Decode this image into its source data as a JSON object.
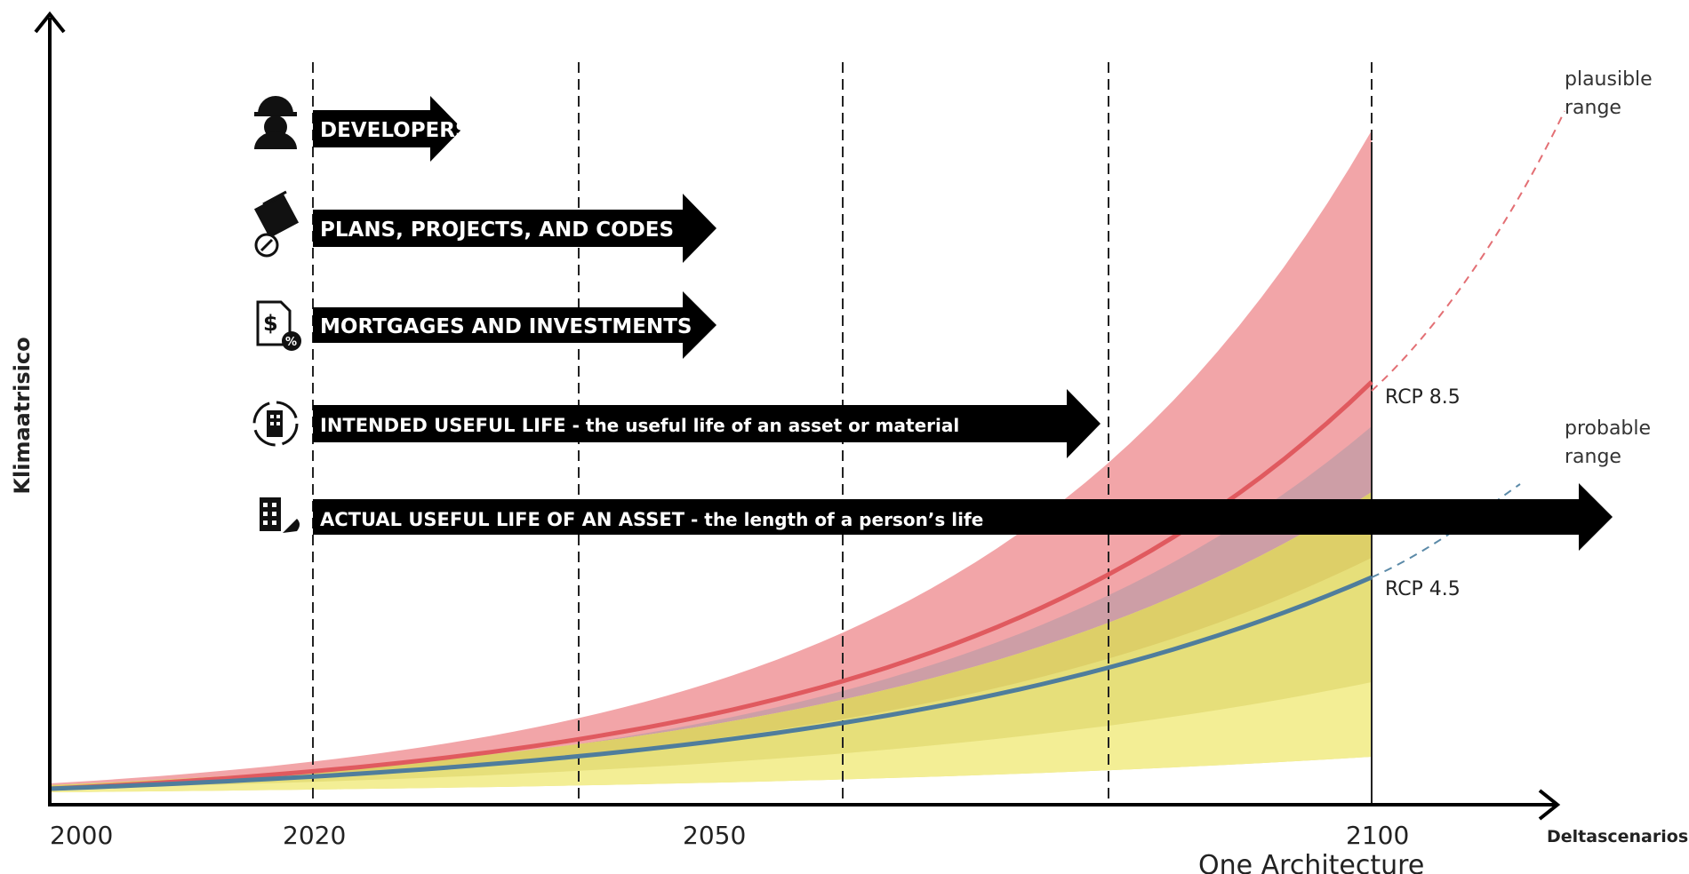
{
  "axes": {
    "y_label": "Klimaatrisico",
    "x_label": "Deltascenarios",
    "x_ticks": [
      "2000",
      "2020",
      "2050",
      "2100"
    ]
  },
  "arrows": [
    {
      "title": "DEVELOPERS",
      "subtitle": "",
      "icon": "worker-helmet-icon",
      "end_year": 2031
    },
    {
      "title": "PLANS, PROJECTS, AND CODES",
      "subtitle": "",
      "icon": "blueprints-icon",
      "end_year": 2050
    },
    {
      "title": "MORTGAGES AND INVESTMENTS",
      "subtitle": "",
      "icon": "mortgage-document-icon",
      "end_year": 2050
    },
    {
      "title": "INTENDED USEFUL LIFE",
      "subtitle": " - the useful life of an asset or material",
      "icon": "building-cycle-icon",
      "end_year": 2079
    },
    {
      "title": "ACTUAL USEFUL LIFE OF AN ASSET",
      "subtitle": " - the length of a person’s life",
      "icon": "building-plant-icon",
      "end_year": 2118
    }
  ],
  "scenarios": {
    "rcp85": {
      "label": "RCP 8.5",
      "color": "#e05a5f",
      "band_color": "#f1a5a8"
    },
    "rcp45": {
      "label": "RCP 4.5",
      "color": "#4f7d9c",
      "band_color": "#e8e07a"
    }
  },
  "range_labels": {
    "plausible": [
      "plausible",
      "range"
    ],
    "probable": [
      "probable",
      "range"
    ]
  },
  "credit": "One Architecture"
}
